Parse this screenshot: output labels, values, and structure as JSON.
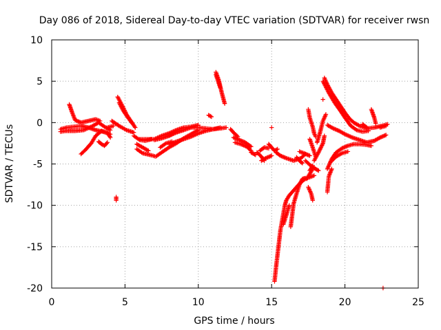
{
  "chart_data": {
    "type": "scatter",
    "title": "Day 086 of 2018, Sidereal Day-to-day VTEC variation (SDTVAR) for receiver rwsn",
    "xlabel": "GPS time / hours",
    "ylabel": "SDTVAR / TECUs",
    "xlim": [
      0,
      25
    ],
    "ylim": [
      -20,
      10
    ],
    "xticks": [
      0,
      5,
      10,
      15,
      20,
      25
    ],
    "yticks": [
      -20,
      -15,
      -10,
      -5,
      0,
      5,
      10
    ],
    "grid": true,
    "marker": "plus",
    "marker_color": "#ff0000",
    "series": [
      {
        "name": "SDTVAR",
        "tracks": [
          [
            [
              0.6,
              -0.8
            ],
            [
              1.0,
              -0.6
            ],
            [
              1.5,
              -0.5
            ],
            [
              2.0,
              -0.4
            ],
            [
              2.5,
              -0.6
            ],
            [
              3.0,
              -0.9
            ],
            [
              3.5,
              -1.1
            ],
            [
              4.0,
              -1.4
            ]
          ],
          [
            [
              0.6,
              -1.1
            ],
            [
              1.0,
              -1.0
            ],
            [
              1.6,
              -1.0
            ],
            [
              2.2,
              -0.9
            ],
            [
              2.8,
              -0.4
            ],
            [
              3.2,
              0.0
            ],
            [
              3.6,
              -0.5
            ],
            [
              4.0,
              -0.9
            ]
          ],
          [
            [
              1.2,
              2.2
            ],
            [
              1.4,
              1.2
            ],
            [
              1.6,
              0.3
            ],
            [
              2.0,
              0.0
            ],
            [
              2.5,
              0.2
            ],
            [
              3.0,
              0.4
            ],
            [
              3.3,
              0.2
            ]
          ],
          [
            [
              2.0,
              -3.8
            ],
            [
              2.3,
              -3.3
            ],
            [
              2.7,
              -2.5
            ],
            [
              3.0,
              -1.6
            ],
            [
              3.4,
              -1.0
            ],
            [
              3.8,
              -1.2
            ],
            [
              4.0,
              -1.8
            ]
          ],
          [
            [
              3.2,
              -2.3
            ],
            [
              3.4,
              -2.6
            ],
            [
              3.6,
              -2.8
            ],
            [
              3.8,
              -2.4
            ]
          ],
          [
            [
              3.8,
              -0.6
            ],
            [
              4.2,
              -0.4
            ]
          ],
          [
            [
              4.4,
              -9.0
            ],
            [
              4.4,
              -9.4
            ]
          ],
          [
            [
              4.5,
              3.1
            ],
            [
              4.8,
              2.1
            ],
            [
              5.1,
              1.0
            ],
            [
              5.4,
              0.2
            ],
            [
              5.7,
              -0.6
            ]
          ],
          [
            [
              4.6,
              2.4
            ],
            [
              4.9,
              1.4
            ],
            [
              5.2,
              0.6
            ],
            [
              5.5,
              -0.1
            ]
          ],
          [
            [
              4.1,
              0.2
            ],
            [
              4.6,
              -0.4
            ],
            [
              5.1,
              -0.9
            ],
            [
              5.6,
              -1.2
            ]
          ],
          [
            [
              5.6,
              -1.6
            ],
            [
              6.0,
              -2.1
            ],
            [
              6.4,
              -2.2
            ],
            [
              6.8,
              -2.0
            ]
          ],
          [
            [
              5.8,
              -2.6
            ],
            [
              6.2,
              -3.0
            ],
            [
              6.6,
              -3.4
            ]
          ],
          [
            [
              5.8,
              -3.2
            ],
            [
              6.2,
              -3.7
            ],
            [
              6.7,
              -3.9
            ],
            [
              7.1,
              -4.1
            ],
            [
              7.5,
              -3.6
            ],
            [
              8.0,
              -3.0
            ],
            [
              8.5,
              -2.5
            ],
            [
              9.0,
              -1.9
            ],
            [
              9.5,
              -1.4
            ],
            [
              10.0,
              -0.9
            ]
          ],
          [
            [
              6.0,
              -2.0
            ],
            [
              6.5,
              -2.0
            ],
            [
              7.0,
              -2.0
            ],
            [
              7.5,
              -1.6
            ],
            [
              8.0,
              -1.3
            ],
            [
              8.5,
              -0.9
            ],
            [
              9.0,
              -0.6
            ],
            [
              9.5,
              -0.5
            ],
            [
              10.0,
              -0.3
            ]
          ],
          [
            [
              7.0,
              -2.1
            ],
            [
              7.5,
              -1.9
            ],
            [
              8.0,
              -1.6
            ],
            [
              8.5,
              -1.2
            ],
            [
              9.0,
              -0.9
            ],
            [
              9.5,
              -0.6
            ],
            [
              10.0,
              -0.6
            ],
            [
              10.5,
              -0.7
            ],
            [
              11.0,
              -0.8
            ],
            [
              11.5,
              -0.7
            ],
            [
              11.9,
              -0.6
            ]
          ],
          [
            [
              8.0,
              -2.6
            ],
            [
              8.5,
              -2.3
            ],
            [
              9.0,
              -2.0
            ],
            [
              9.5,
              -1.7
            ],
            [
              10.0,
              -1.3
            ],
            [
              10.5,
              -1.0
            ],
            [
              11.0,
              -0.8
            ],
            [
              11.5,
              -0.6
            ]
          ],
          [
            [
              7.4,
              -3.0
            ],
            [
              7.8,
              -2.5
            ],
            [
              8.2,
              -2.3
            ]
          ],
          [
            [
              8.0,
              -1.6
            ],
            [
              8.5,
              -1.1
            ],
            [
              9.0,
              -0.9
            ]
          ],
          [
            [
              10.7,
              0.9
            ],
            [
              10.9,
              0.7
            ]
          ],
          [
            [
              11.2,
              6.1
            ],
            [
              11.4,
              5.1
            ],
            [
              11.6,
              3.6
            ],
            [
              11.8,
              2.3
            ]
          ],
          [
            [
              11.2,
              5.8
            ],
            [
              11.5,
              4.2
            ]
          ],
          [
            [
              12.2,
              -0.8
            ],
            [
              12.4,
              -1.2
            ],
            [
              12.7,
              -1.7
            ]
          ],
          [
            [
              12.4,
              -1.8
            ],
            [
              12.8,
              -2.1
            ],
            [
              13.2,
              -2.4
            ],
            [
              13.6,
              -2.9
            ]
          ],
          [
            [
              12.5,
              -2.4
            ],
            [
              12.9,
              -2.6
            ],
            [
              13.3,
              -2.9
            ],
            [
              13.6,
              -3.4
            ]
          ],
          [
            [
              13.6,
              -3.6
            ],
            [
              13.9,
              -3.9
            ]
          ],
          [
            [
              14.0,
              -3.6
            ],
            [
              14.3,
              -4.1
            ],
            [
              14.5,
              -4.6
            ]
          ],
          [
            [
              14.2,
              -3.4
            ],
            [
              14.5,
              -3.0
            ],
            [
              14.8,
              -3.1
            ]
          ],
          [
            [
              14.3,
              -4.6
            ],
            [
              14.6,
              -4.3
            ],
            [
              15.0,
              -4.0
            ]
          ],
          [
            [
              14.8,
              -2.6
            ],
            [
              15.0,
              -3.0
            ],
            [
              15.2,
              -3.4
            ],
            [
              15.4,
              -3.2
            ]
          ],
          [
            [
              15.3,
              -3.6
            ],
            [
              15.6,
              -4.0
            ],
            [
              16.0,
              -4.3
            ],
            [
              16.5,
              -4.6
            ],
            [
              17.0,
              -4.3
            ],
            [
              17.3,
              -3.8
            ]
          ],
          [
            [
              15.0,
              -0.6
            ]
          ],
          [
            [
              15.2,
              -19.2
            ],
            [
              15.3,
              -17.5
            ],
            [
              15.4,
              -16.0
            ],
            [
              15.5,
              -14.5
            ],
            [
              15.6,
              -13.0
            ],
            [
              15.7,
              -12.0
            ],
            [
              15.8,
              -11.0
            ],
            [
              15.9,
              -10.0
            ],
            [
              16.0,
              -9.4
            ],
            [
              16.2,
              -8.8
            ],
            [
              16.5,
              -8.2
            ],
            [
              16.8,
              -7.6
            ],
            [
              17.0,
              -7.2
            ],
            [
              17.3,
              -6.8
            ],
            [
              17.6,
              -6.6
            ],
            [
              17.9,
              -6.4
            ]
          ],
          [
            [
              15.8,
              -12.3
            ],
            [
              16.0,
              -11.2
            ],
            [
              16.2,
              -10.0
            ]
          ],
          [
            [
              16.3,
              -12.6
            ],
            [
              16.4,
              -11.2
            ],
            [
              16.5,
              -9.8
            ],
            [
              16.7,
              -8.6
            ],
            [
              16.9,
              -7.5
            ],
            [
              17.1,
              -6.8
            ],
            [
              17.3,
              -6.7
            ]
          ],
          [
            [
              16.7,
              -4.2
            ],
            [
              16.9,
              -4.6
            ],
            [
              17.1,
              -4.9
            ]
          ],
          [
            [
              16.9,
              -3.5
            ],
            [
              17.2,
              -3.7
            ],
            [
              17.6,
              -4.0
            ]
          ],
          [
            [
              17.3,
              -4.6
            ],
            [
              17.6,
              -5.1
            ],
            [
              17.9,
              -5.5
            ],
            [
              18.2,
              -5.8
            ]
          ],
          [
            [
              17.4,
              -6.8
            ],
            [
              17.6,
              -6.2
            ],
            [
              17.8,
              -5.6
            ]
          ],
          [
            [
              17.5,
              -7.8
            ],
            [
              17.7,
              -8.6
            ],
            [
              17.8,
              -9.4
            ]
          ],
          [
            [
              17.5,
              1.6
            ],
            [
              17.6,
              0.6
            ],
            [
              17.8,
              -0.5
            ],
            [
              17.9,
              -1.3
            ],
            [
              18.0,
              -1.7
            ]
          ],
          [
            [
              17.6,
              -2.0
            ],
            [
              17.8,
              -3.0
            ],
            [
              18.0,
              -4.1
            ]
          ],
          [
            [
              17.6,
              -5.8
            ],
            [
              17.8,
              -5.2
            ]
          ],
          [
            [
              17.9,
              -4.6
            ],
            [
              18.2,
              -3.6
            ],
            [
              18.5,
              -2.5
            ],
            [
              18.6,
              -1.6
            ]
          ],
          [
            [
              18.1,
              -2.4
            ],
            [
              18.3,
              -1.2
            ],
            [
              18.5,
              0.2
            ],
            [
              18.7,
              1.0
            ]
          ],
          [
            [
              18.6,
              5.4
            ],
            [
              18.8,
              4.6
            ],
            [
              19.1,
              3.6
            ],
            [
              19.4,
              2.8
            ],
            [
              19.7,
              2.0
            ],
            [
              20.0,
              1.2
            ],
            [
              20.3,
              0.5
            ],
            [
              20.6,
              0.0
            ],
            [
              21.0,
              -0.4
            ],
            [
              21.5,
              -0.7
            ],
            [
              22.0,
              -0.6
            ],
            [
              22.5,
              -0.4
            ],
            [
              22.9,
              -0.2
            ]
          ],
          [
            [
              18.5,
              2.8
            ]
          ],
          [
            [
              18.5,
              5.0
            ],
            [
              18.9,
              3.6
            ],
            [
              19.3,
              2.4
            ],
            [
              19.7,
              1.4
            ],
            [
              20.0,
              0.6
            ],
            [
              20.4,
              -0.4
            ],
            [
              20.8,
              -0.9
            ],
            [
              21.2,
              -1.1
            ],
            [
              21.6,
              -1.0
            ]
          ],
          [
            [
              18.8,
              -0.3
            ],
            [
              19.2,
              -0.7
            ],
            [
              19.6,
              -1.0
            ],
            [
              20.0,
              -1.4
            ],
            [
              20.5,
              -1.8
            ],
            [
              21.0,
              -2.1
            ],
            [
              21.5,
              -2.4
            ],
            [
              22.0,
              -2.2
            ],
            [
              22.4,
              -1.8
            ],
            [
              22.8,
              -1.5
            ]
          ],
          [
            [
              18.8,
              -5.6
            ],
            [
              19.1,
              -4.4
            ],
            [
              19.4,
              -3.6
            ],
            [
              19.8,
              -3.1
            ],
            [
              20.2,
              -2.8
            ],
            [
              20.6,
              -2.6
            ],
            [
              21.0,
              -2.6
            ],
            [
              21.5,
              -2.7
            ],
            [
              21.8,
              -2.8
            ]
          ],
          [
            [
              18.8,
              -8.4
            ],
            [
              18.9,
              -6.5
            ],
            [
              19.1,
              -5.6
            ]
          ],
          [
            [
              19.0,
              -4.8
            ],
            [
              19.4,
              -4.1
            ],
            [
              19.8,
              -3.7
            ],
            [
              20.2,
              -3.5
            ]
          ],
          [
            [
              21.2,
              -0.2
            ],
            [
              21.5,
              -0.6
            ]
          ],
          [
            [
              21.8,
              1.6
            ],
            [
              22.0,
              0.6
            ],
            [
              22.1,
              -0.1
            ]
          ],
          [
            [
              22.4,
              -0.6
            ],
            [
              22.8,
              -0.4
            ]
          ],
          [
            [
              22.6,
              -20.0
            ]
          ]
        ]
      }
    ]
  }
}
